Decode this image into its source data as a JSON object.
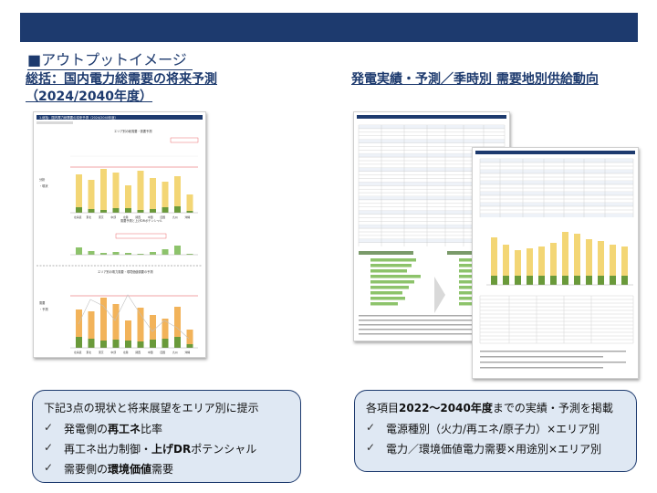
{
  "section_title": "■アウトプットイメージ",
  "left": {
    "heading_line1": "総括：国内電力総需要の将来予測",
    "heading_line2": "（2024/2040年度）",
    "doc_title": "1.総括：国内電力総需要の将来予測（2024/2040年度）",
    "panel1_title": "エリア別の総需要・需要予測",
    "panel2_title": "需要予測と上げDRポテンシャル",
    "panel3_title": "エリア別の電力需要・環境価値需要の予測",
    "areas": [
      "北海道",
      "東北",
      "東京",
      "中部",
      "北陸",
      "関西",
      "中国",
      "四国",
      "九州",
      "沖縄"
    ],
    "card_title": "下記3点の現状と将来展望をエリア別に提示",
    "card_items": [
      {
        "pre": "発電側の",
        "bold": "再工ネ",
        "post": "比率"
      },
      {
        "pre": "再工ネ出力制御・",
        "bold": "上げDR",
        "post": "ポテンシャル"
      },
      {
        "pre": "需要側の",
        "bold": "環境価値",
        "post": "需要"
      }
    ]
  },
  "right": {
    "heading": "発電実績・予測／季時別 需要地別供給動向",
    "card_title_pre": "各項目",
    "card_title_bold": "2022～2040年度",
    "card_title_post": "までの実績・予測を掲載",
    "card_items": [
      "電源種別（火力/再エネ/原子力）×エリア別",
      "電力／環境価値電力需要×用途別×エリア別"
    ]
  },
  "icons": {
    "check": "✓"
  },
  "colors": {
    "navy": "#1d3a6e",
    "card_bg": "#dfe8f3",
    "bar_yellow": "#f3d675",
    "bar_green": "#6a9a3a",
    "line_red": "#e5484d"
  }
}
